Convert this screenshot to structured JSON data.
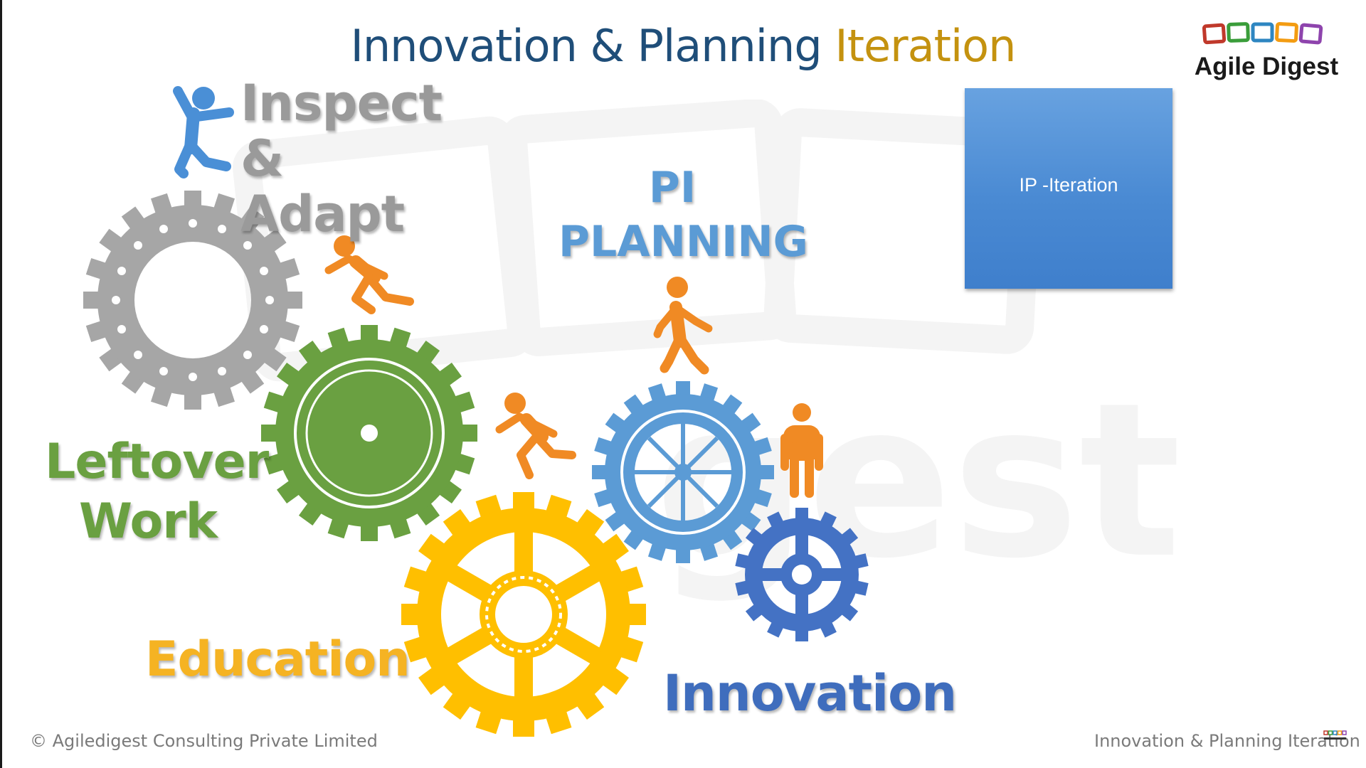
{
  "slide": {
    "title_main": "Innovation & Planning",
    "title_highlight": "Iteration",
    "logo": {
      "name": "Agile Digest",
      "colors": [
        "#c0392b",
        "#3a9d3a",
        "#2e86c1",
        "#f39c12",
        "#8e44ad"
      ]
    },
    "ip_box": {
      "label": "IP -Iteration"
    },
    "labels": {
      "inspect_adapt": "Inspect & Adapt",
      "pi_planning": "PI PLANNING",
      "leftover_work": "Leftover Work",
      "education": "Education",
      "innovation": "Innovation"
    },
    "colors": {
      "title": "#1f4e79",
      "title_highlight": "#c4920f",
      "gear_gray": "#a6a6a6",
      "gear_green": "#6aa041",
      "gear_yellow": "#ffbf00",
      "gear_blue": "#5b9bd5",
      "gear_dark_blue": "#4472c4",
      "figures": "#f08a24",
      "figure_blue": "#4a8fd6"
    },
    "footer": {
      "copyright": "© Agiledigest Consulting Private Limited",
      "slide_name": "Innovation & Planning Iteration"
    }
  }
}
